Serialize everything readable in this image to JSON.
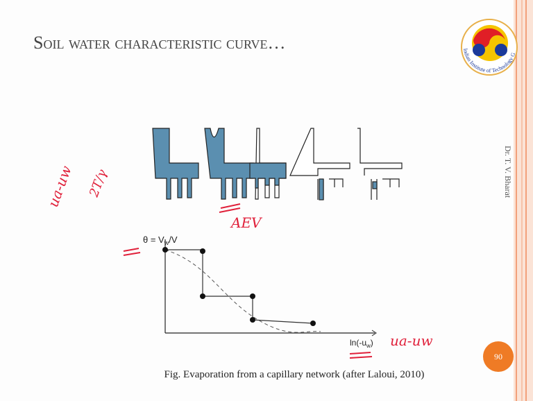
{
  "header": {
    "title": "Soil water characteristic curve…",
    "author": "Dr. T. V. Bharat",
    "logo_text": "Indian Institute of Technology Guwahati"
  },
  "figure": {
    "y_label": {
      "main": "θ = V",
      "sub": "w",
      "tail": "/V"
    },
    "x_label": {
      "main": "ln(-u",
      "sub": "w",
      "tail": ")"
    },
    "caption": "Fig. Evaporation from a capillary network (after Laloui, 2010)"
  },
  "annotations": {
    "equation_left": "ua-uw",
    "equation_right": "2T/γ",
    "aev": "AEV",
    "axis_note": "ua-uw"
  },
  "footer": {
    "page_number": "90"
  }
}
